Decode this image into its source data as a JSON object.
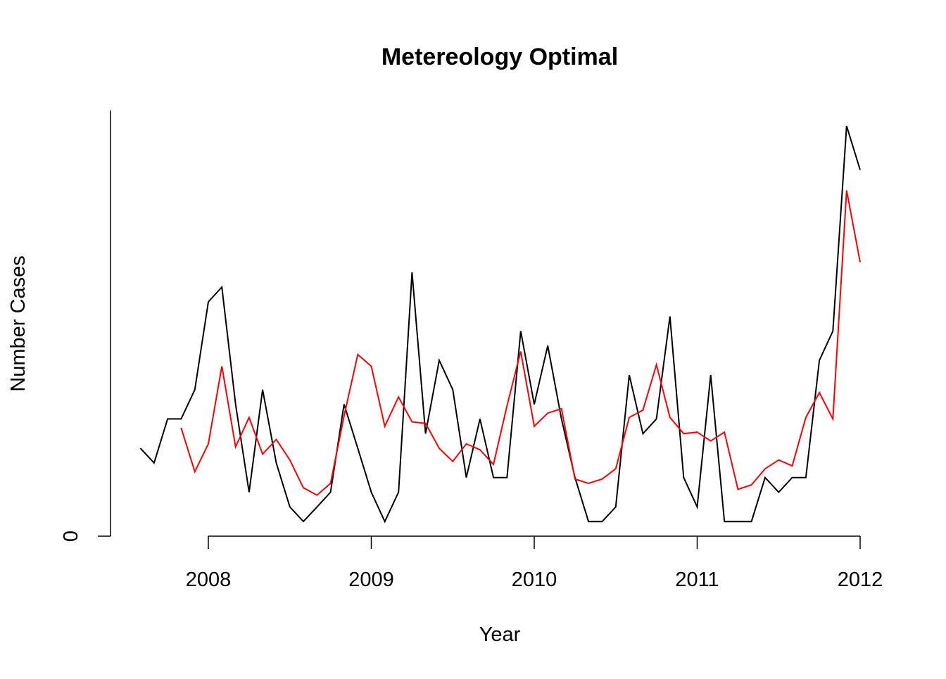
{
  "chart_data": {
    "type": "line",
    "title": "Metereology Optimal",
    "xlabel": "Year",
    "ylabel": "Number Cases",
    "x_ticks": [
      2008,
      2009,
      2010,
      2011,
      2012
    ],
    "x_tick_labels": [
      "2008",
      "2009",
      "2010",
      "2011",
      "2012"
    ],
    "y_ticks": [
      0
    ],
    "y_tick_labels": [
      "0"
    ],
    "xlim": [
      2007.4,
      2012.0
    ],
    "ylim": [
      0,
      29
    ],
    "grid": false,
    "legend": "none",
    "series": [
      {
        "color": "#000000",
        "x": [
          2007.583,
          2007.667,
          2007.75,
          2007.833,
          2007.917,
          2008.0,
          2008.083,
          2008.167,
          2008.25,
          2008.333,
          2008.417,
          2008.5,
          2008.583,
          2008.667,
          2008.75,
          2008.833,
          2008.917,
          2009.0,
          2009.083,
          2009.167,
          2009.25,
          2009.333,
          2009.417,
          2009.5,
          2009.583,
          2009.667,
          2009.75,
          2009.833,
          2009.917,
          2010.0,
          2010.083,
          2010.167,
          2010.25,
          2010.333,
          2010.417,
          2010.5,
          2010.583,
          2010.667,
          2010.75,
          2010.833,
          2010.917,
          2011.0,
          2011.083,
          2011.167,
          2011.25,
          2011.333,
          2011.417,
          2011.5,
          2011.583,
          2011.667,
          2011.75,
          2011.833,
          2011.917,
          2012.0
        ],
        "values": [
          6,
          5,
          8,
          8,
          10,
          16,
          17,
          9,
          3,
          10,
          5,
          2,
          1,
          2,
          3,
          9,
          6,
          3,
          1,
          3,
          18,
          7,
          12,
          10,
          4,
          8,
          4,
          4,
          14,
          9,
          13,
          8,
          4,
          1,
          1,
          2,
          11,
          7,
          8,
          15,
          4,
          2,
          11,
          1,
          1,
          1,
          4,
          3,
          4,
          4,
          12,
          14,
          28,
          25
        ]
      },
      {
        "color": "#ff0000",
        "x": [
          2007.833,
          2007.917,
          2008.0,
          2008.083,
          2008.167,
          2008.25,
          2008.333,
          2008.417,
          2008.5,
          2008.583,
          2008.667,
          2008.75,
          2008.833,
          2008.917,
          2009.0,
          2009.083,
          2009.167,
          2009.25,
          2009.333,
          2009.417,
          2009.5,
          2009.583,
          2009.667,
          2009.75,
          2009.833,
          2009.917,
          2010.0,
          2010.083,
          2010.167,
          2010.25,
          2010.333,
          2010.417,
          2010.5,
          2010.583,
          2010.667,
          2010.75,
          2010.833,
          2010.917,
          2011.0,
          2011.083,
          2011.167,
          2011.25,
          2011.333,
          2011.417,
          2011.5,
          2011.583,
          2011.667,
          2011.75,
          2011.833,
          2011.917,
          2012.0
        ],
        "values": [
          7.4,
          4.4,
          6.3,
          11.6,
          6.1,
          8.1,
          5.6,
          6.6,
          5.2,
          3.3,
          2.8,
          3.6,
          8.2,
          12.4,
          11.6,
          7.5,
          9.5,
          7.8,
          7.7,
          6.0,
          5.1,
          6.3,
          5.9,
          4.9,
          8.9,
          12.6,
          7.5,
          8.4,
          8.7,
          3.9,
          3.6,
          3.9,
          4.6,
          8.1,
          8.6,
          11.7,
          8.1,
          7.0,
          7.1,
          6.5,
          7.1,
          3.2,
          3.5,
          4.6,
          5.2,
          4.8,
          8.1,
          9.8,
          8.0,
          23.6,
          18.7
        ]
      }
    ]
  }
}
